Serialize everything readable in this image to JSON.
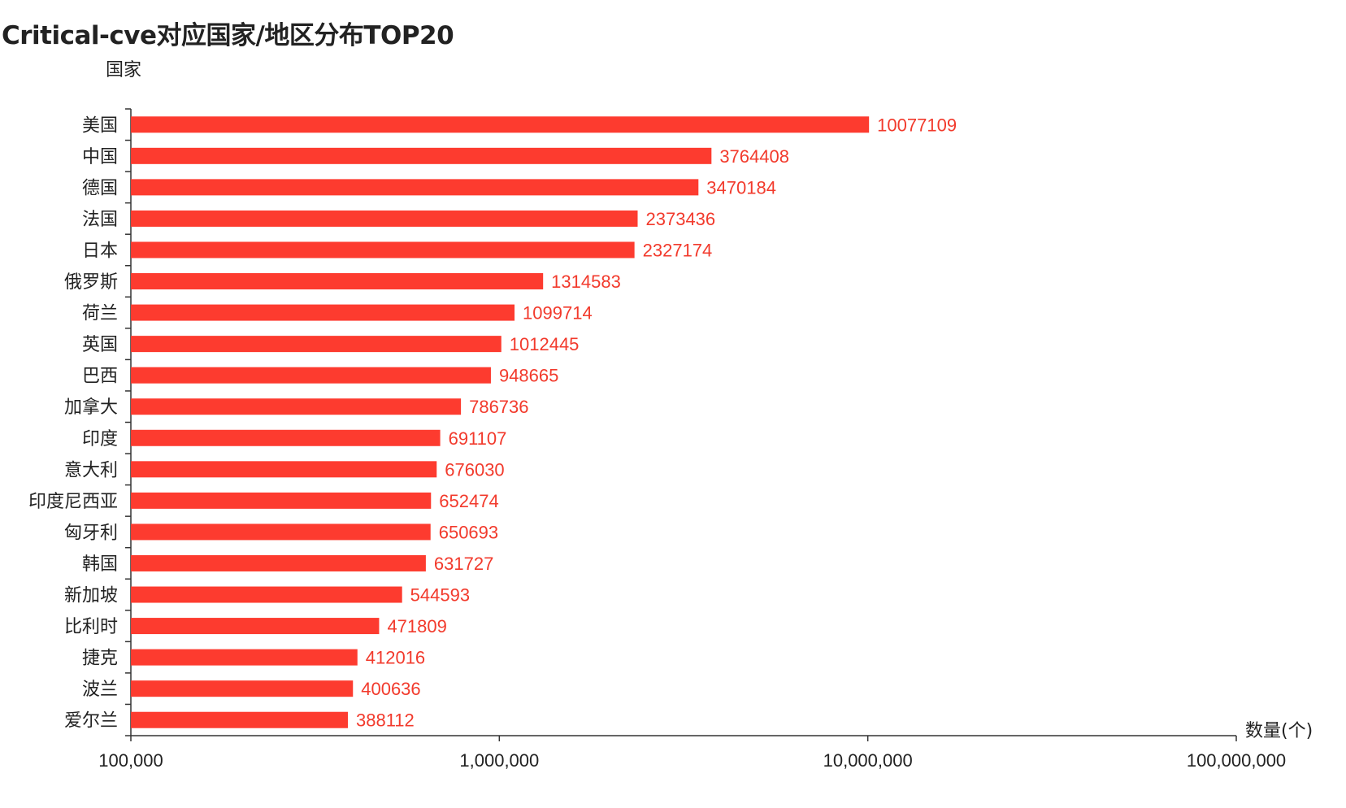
{
  "chart_data": {
    "type": "bar",
    "orientation": "horizontal",
    "title": "Critical-cve对应国家/地区分布TOP20",
    "ylabel": "国家",
    "xlabel": "数量(个)",
    "x_scale": "log",
    "xlim": [
      100000,
      100000000
    ],
    "x_ticks": [
      100000,
      1000000,
      10000000,
      100000000
    ],
    "x_tick_labels": [
      "100,000",
      "1,000,000",
      "10,000,000",
      "100,000,000"
    ],
    "bar_color": "#fd3b2f",
    "label_color": "#f23a2c",
    "grid": false,
    "categories": [
      "美国",
      "中国",
      "德国",
      "法国",
      "日本",
      "俄罗斯",
      "荷兰",
      "英国",
      "巴西",
      "加拿大",
      "印度",
      "意大利",
      "印度尼西亚",
      "匈牙利",
      "韩国",
      "新加坡",
      "比利时",
      "捷克",
      "波兰",
      "爱尔兰"
    ],
    "values": [
      10077109,
      3764408,
      3470184,
      2373436,
      2327174,
      1314583,
      1099714,
      1012445,
      948665,
      786736,
      691107,
      676030,
      652474,
      650693,
      631727,
      544593,
      471809,
      412016,
      400636,
      388112
    ]
  }
}
